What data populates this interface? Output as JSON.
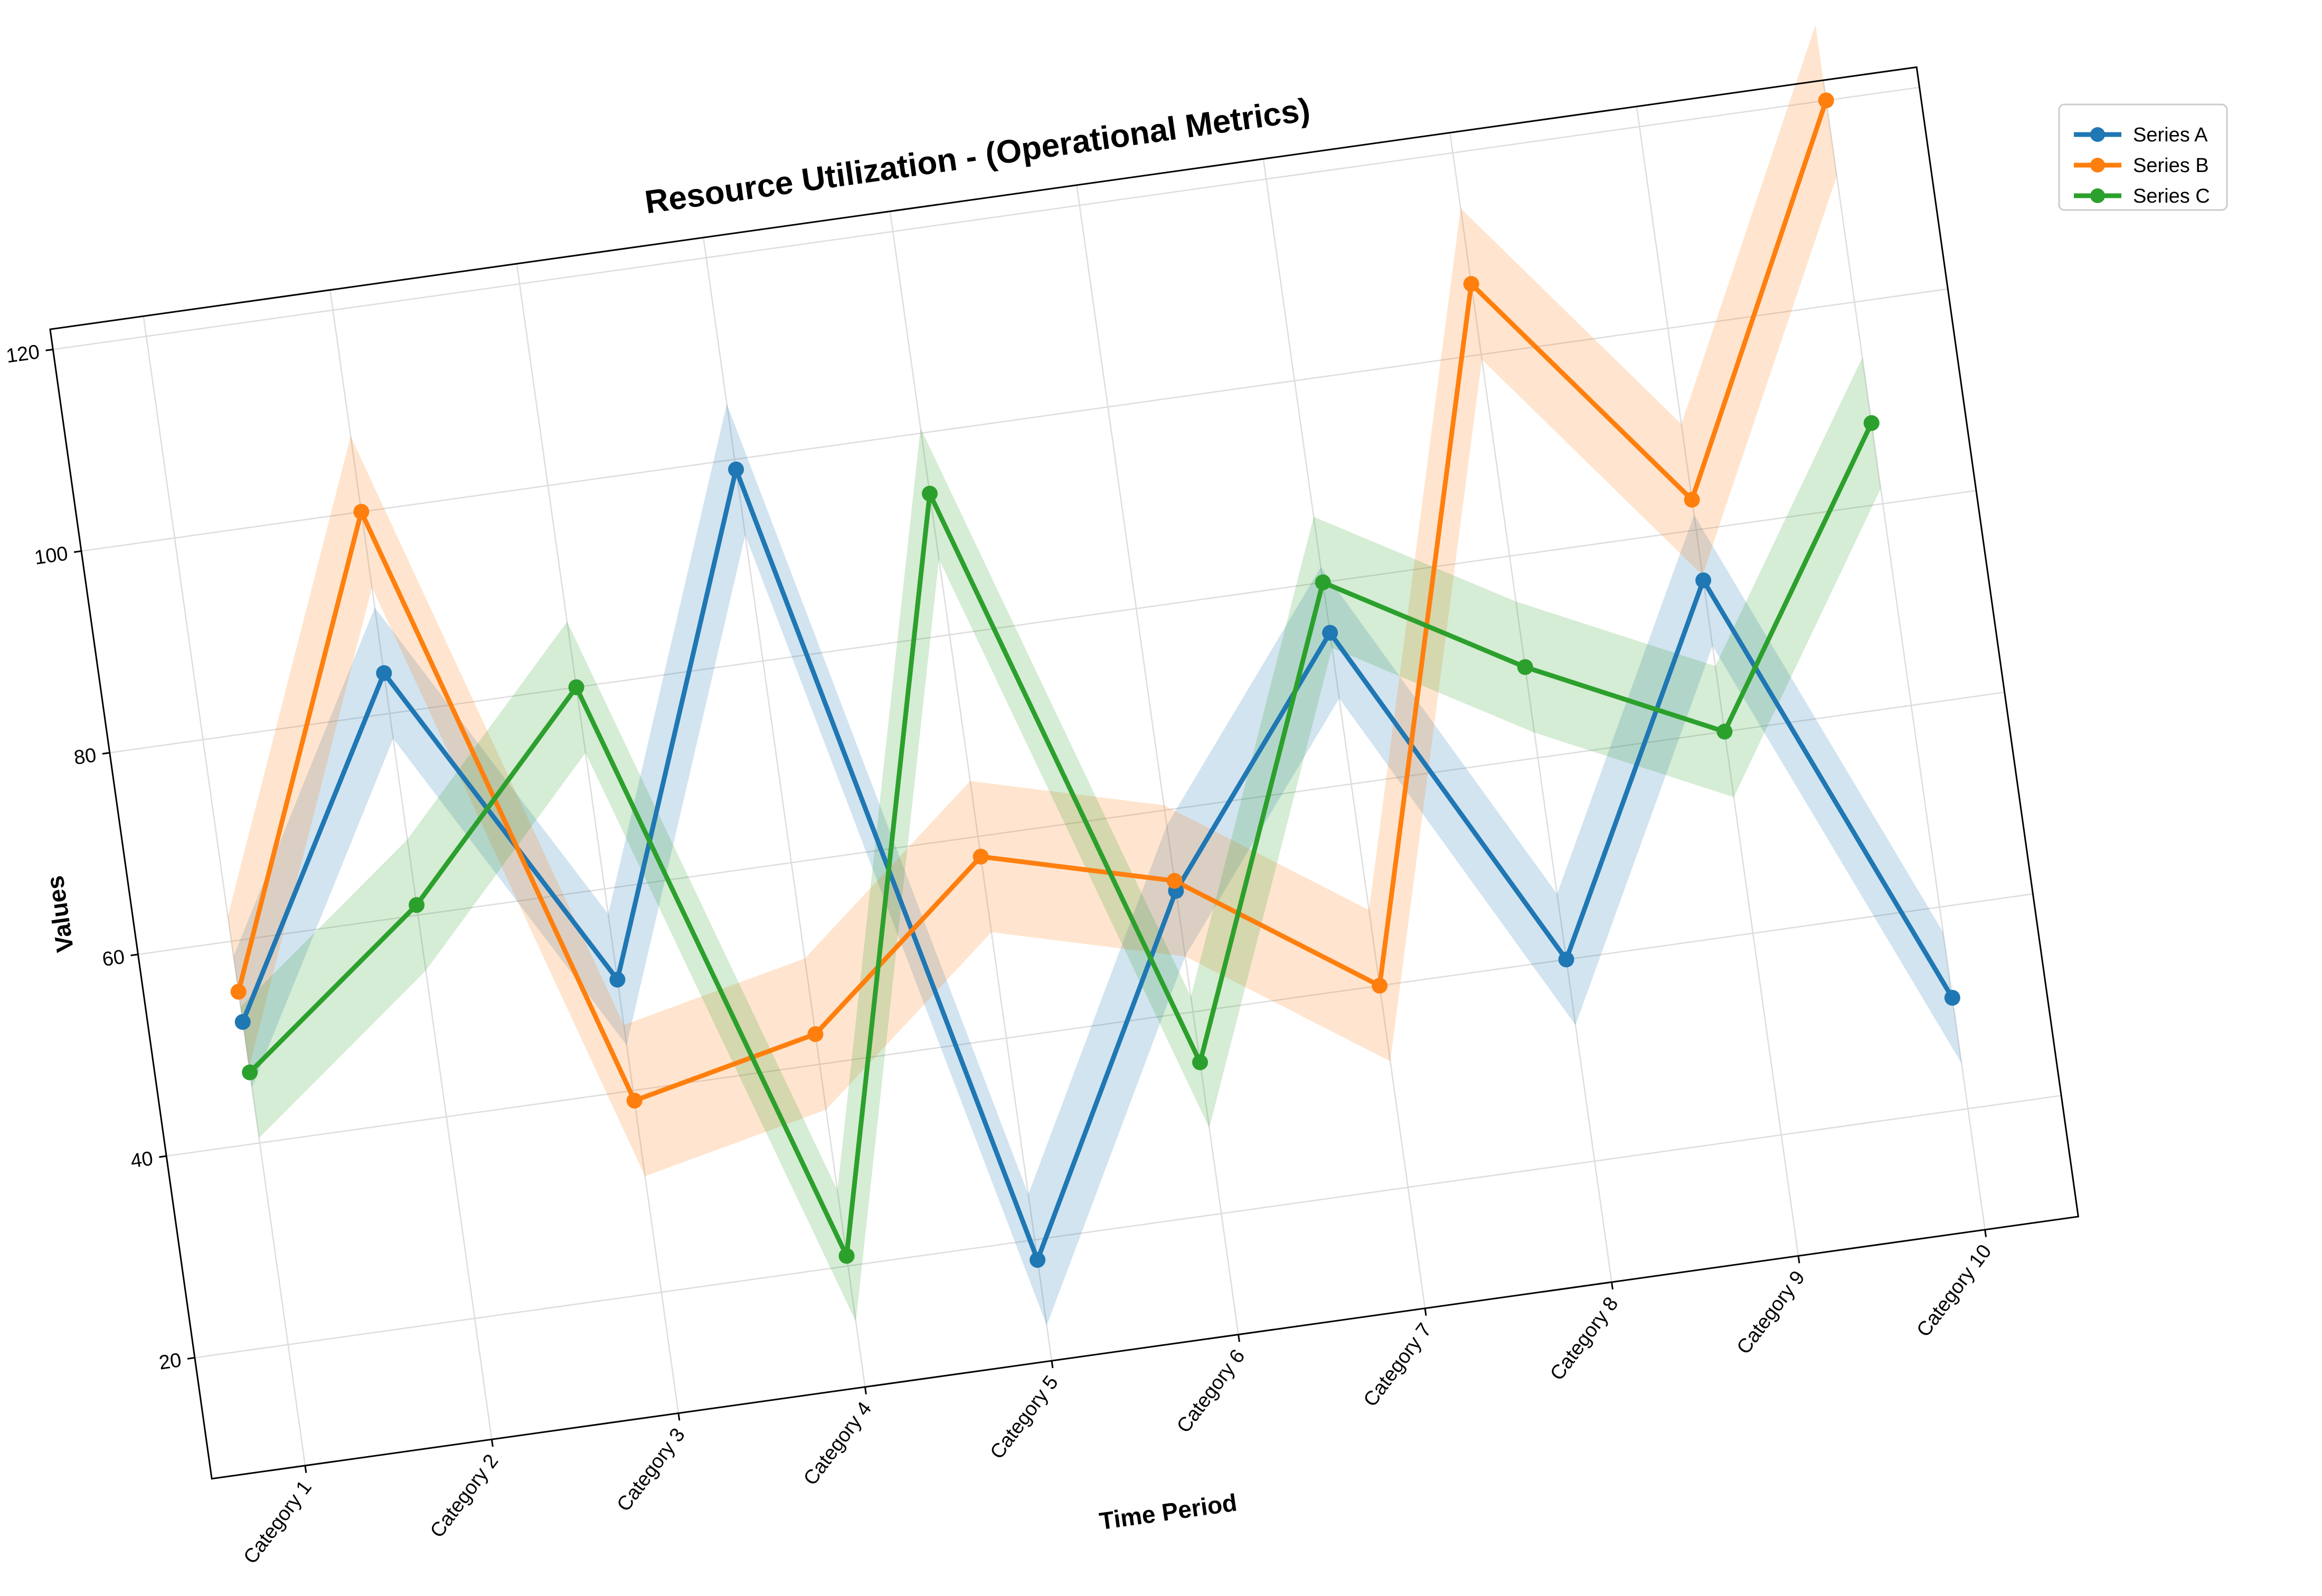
{
  "chart_data": {
    "type": "line",
    "title": "Resource Utilization - (Operational Metrics)",
    "xlabel": "Time Period",
    "ylabel": "Values",
    "categories": [
      "Category 1",
      "Category 2",
      "Category 3",
      "Category 4",
      "Category 5",
      "Category 6",
      "Category 7",
      "Category 8",
      "Category 9",
      "Category 10"
    ],
    "yticks": [
      20,
      40,
      60,
      80,
      100,
      120
    ],
    "ylim": [
      8,
      122
    ],
    "grid": true,
    "legend_position": "outside top-right",
    "rotation_degrees": -8,
    "series": [
      {
        "name": "Series A",
        "color": "#1f77b4",
        "values": [
          52,
          84,
          51,
          99,
          18,
          52,
          75,
          40,
          75,
          31
        ],
        "band_half_width": 6.5
      },
      {
        "name": "Series B",
        "color": "#ff7f0e",
        "values": [
          55,
          100,
          39,
          43,
          58,
          53,
          40,
          107,
          83,
          120
        ],
        "band_half_width": 7.5
      },
      {
        "name": "Series C",
        "color": "#2ca02c",
        "values": [
          47,
          61,
          80,
          21,
          94,
          35,
          80,
          69,
          60,
          88
        ],
        "band_half_width": 6.5
      }
    ]
  }
}
